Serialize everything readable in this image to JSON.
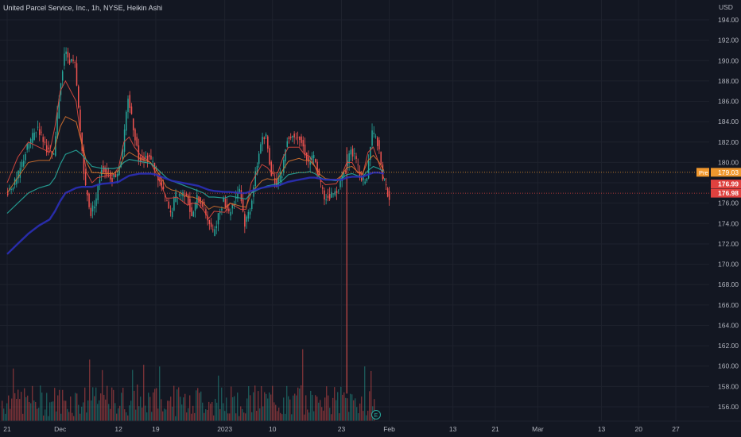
{
  "legend": {
    "symbol": "United Parcel Service, Inc., 1h, NYSE, Heikin Ashi"
  },
  "colors": {
    "background": "#131722",
    "grid": "#1e222d",
    "text": "#b2b5be",
    "up": "#26a69a",
    "down": "#ef5350",
    "ema_fast": "#e04a3f",
    "ema_mid": "#d8732f",
    "ema_slow": "#26a69a",
    "ema_long": "#2b2fb8",
    "pre_badge": "#f0982e",
    "price_badge": "#e0413f"
  },
  "chart_data": {
    "type": "candlestick",
    "currency": "USD",
    "ylim": [
      155,
      195
    ],
    "y_ticks": [
      "194.00",
      "192.00",
      "190.00",
      "188.00",
      "186.00",
      "184.00",
      "182.00",
      "180.00",
      "178.00",
      "176.00",
      "174.00",
      "172.00",
      "170.00",
      "168.00",
      "166.00",
      "164.00",
      "162.00",
      "160.00",
      "158.00",
      "156.00"
    ],
    "x_ticks": [
      {
        "label": "21",
        "x": "2022-11-21"
      },
      {
        "label": "Dec",
        "x": "2022-12-01"
      },
      {
        "label": "12",
        "x": "2022-12-12"
      },
      {
        "label": "19",
        "x": "2022-12-19"
      },
      {
        "label": "2023",
        "x": "2023-01-01"
      },
      {
        "label": "10",
        "x": "2023-01-10"
      },
      {
        "label": "23",
        "x": "2023-01-23"
      },
      {
        "label": "Feb",
        "x": "2023-02-01"
      },
      {
        "label": "13",
        "x": "2023-02-13"
      },
      {
        "label": "21",
        "x": "2023-02-21"
      },
      {
        "label": "Mar",
        "x": "2023-03-01"
      },
      {
        "label": "13",
        "x": "2023-03-13"
      },
      {
        "label": "20",
        "x": "2023-03-20"
      },
      {
        "label": "27",
        "x": "2023-03-27"
      }
    ],
    "x_range": [
      "2022-11-20",
      "2023-03-31"
    ],
    "close_series": [
      {
        "x": "2022-11-21",
        "y": 178.2
      },
      {
        "x": "2022-11-23",
        "y": 181.5
      },
      {
        "x": "2022-11-25",
        "y": 183.5
      },
      {
        "x": "2022-11-27",
        "y": 181.0
      },
      {
        "x": "2022-11-29",
        "y": 180.5
      },
      {
        "x": "2022-11-30",
        "y": 186.5
      },
      {
        "x": "2022-12-01",
        "y": 190.8
      },
      {
        "x": "2022-12-02",
        "y": 189.5
      },
      {
        "x": "2022-12-04",
        "y": 183.0
      },
      {
        "x": "2022-12-05",
        "y": 177.5
      },
      {
        "x": "2022-12-06",
        "y": 175.0
      },
      {
        "x": "2022-12-07",
        "y": 176.5
      },
      {
        "x": "2022-12-08",
        "y": 179.5
      },
      {
        "x": "2022-12-09",
        "y": 178.5
      },
      {
        "x": "2022-12-11",
        "y": 179.0
      },
      {
        "x": "2022-12-12",
        "y": 181.0
      },
      {
        "x": "2022-12-13",
        "y": 186.5
      },
      {
        "x": "2022-12-14",
        "y": 183.5
      },
      {
        "x": "2022-12-15",
        "y": 180.5
      },
      {
        "x": "2022-12-16",
        "y": 180.5
      },
      {
        "x": "2022-12-18",
        "y": 179.5
      },
      {
        "x": "2022-12-19",
        "y": 178.0
      },
      {
        "x": "2022-12-20",
        "y": 176.5
      },
      {
        "x": "2022-12-21",
        "y": 174.8
      },
      {
        "x": "2022-12-22",
        "y": 176.8
      },
      {
        "x": "2022-12-23",
        "y": 177.0
      },
      {
        "x": "2022-12-25",
        "y": 174.5
      },
      {
        "x": "2022-12-26",
        "y": 176.5
      },
      {
        "x": "2022-12-27",
        "y": 176.0
      },
      {
        "x": "2022-12-28",
        "y": 174.5
      },
      {
        "x": "2022-12-29",
        "y": 173.0
      },
      {
        "x": "2022-12-30",
        "y": 176.5
      },
      {
        "x": "2023-01-01",
        "y": 175.0
      },
      {
        "x": "2023-01-02",
        "y": 177.5
      },
      {
        "x": "2023-01-04",
        "y": 174.0
      },
      {
        "x": "2023-01-05",
        "y": 175.5
      },
      {
        "x": "2023-01-06",
        "y": 182.0
      },
      {
        "x": "2023-01-08",
        "y": 182.5
      },
      {
        "x": "2023-01-09",
        "y": 179.0
      },
      {
        "x": "2023-01-10",
        "y": 178.0
      },
      {
        "x": "2023-01-11",
        "y": 179.0
      },
      {
        "x": "2023-01-12",
        "y": 182.5
      },
      {
        "x": "2023-01-13",
        "y": 182.8
      },
      {
        "x": "2023-01-15",
        "y": 181.5
      },
      {
        "x": "2023-01-16",
        "y": 180.0
      },
      {
        "x": "2023-01-17",
        "y": 180.5
      },
      {
        "x": "2023-01-18",
        "y": 178.5
      },
      {
        "x": "2023-01-19",
        "y": 176.5
      },
      {
        "x": "2023-01-20",
        "y": 177.0
      },
      {
        "x": "2023-01-22",
        "y": 178.0
      },
      {
        "x": "2023-01-23",
        "y": 179.5
      },
      {
        "x": "2023-01-24",
        "y": 181.5
      },
      {
        "x": "2023-01-25",
        "y": 180.0
      },
      {
        "x": "2023-01-26",
        "y": 178.0
      },
      {
        "x": "2023-01-27",
        "y": 178.5
      },
      {
        "x": "2023-01-28",
        "y": 183.0
      },
      {
        "x": "2023-01-29",
        "y": 182.0
      },
      {
        "x": "2023-01-30",
        "y": 178.5
      },
      {
        "x": "2023-01-31",
        "y": 176.5
      }
    ],
    "moving_averages_y": {
      "ema_fast": [
        178,
        180.5,
        182,
        181.5,
        181,
        183.5,
        187,
        188,
        186,
        182,
        179,
        178,
        178.5,
        178.6,
        178.8,
        179.5,
        182,
        182.5,
        181.5,
        180.8,
        180,
        179,
        177.8,
        176.5,
        176.5,
        176.6,
        175.8,
        176,
        175.9,
        175.3,
        174.5,
        175.2,
        175.1,
        176,
        175.4,
        175.4,
        178,
        179.8,
        179.5,
        178.9,
        179,
        180.5,
        181.5,
        181.5,
        180.8,
        180.6,
        179.6,
        178.3,
        177.8,
        177.9,
        178.7,
        180,
        180,
        179,
        178.8,
        181,
        181.5,
        180,
        178.4
      ],
      "ema_mid": [
        177,
        178.5,
        180,
        180.2,
        180.2,
        181.5,
        183.5,
        184.5,
        184,
        182,
        180,
        179,
        179,
        178.9,
        178.9,
        179.2,
        180.5,
        181,
        180.7,
        180.4,
        180,
        179.4,
        178.5,
        177.6,
        177.3,
        177.2,
        176.6,
        176.6,
        176.4,
        176,
        175.4,
        175.7,
        175.5,
        176,
        175.7,
        175.6,
        177,
        178.2,
        178.4,
        178.3,
        178.4,
        179.3,
        180.1,
        180.4,
        180.2,
        180.2,
        179.6,
        178.8,
        178.4,
        178.3,
        178.7,
        179.5,
        179.6,
        179.1,
        178.9,
        180.2,
        180.7,
        180.1,
        179.2
      ],
      "ema_slow": [
        175,
        176,
        177,
        177.5,
        177.8,
        178.5,
        179.8,
        180.8,
        181.2,
        180.8,
        180.2,
        179.6,
        179.5,
        179.4,
        179.4,
        179.5,
        180,
        180.3,
        180.2,
        180.1,
        179.9,
        179.5,
        179,
        178.5,
        178.2,
        178,
        177.6,
        177.4,
        177.2,
        177,
        176.6,
        176.6,
        176.5,
        176.7,
        176.5,
        176.4,
        177,
        177.5,
        177.7,
        177.8,
        177.9,
        178.3,
        178.8,
        179,
        179,
        179.1,
        178.9,
        178.5,
        178.3,
        178.2,
        178.4,
        178.8,
        178.9,
        178.7,
        178.6,
        179.2,
        179.6,
        179.4,
        179.1
      ],
      "ema_long": [
        171,
        172,
        173,
        173.8,
        174.4,
        175.2,
        176.2,
        177,
        177.5,
        177.6,
        177.6,
        177.6,
        177.8,
        177.9,
        178,
        178.1,
        178.4,
        178.7,
        178.8,
        178.9,
        178.9,
        178.8,
        178.6,
        178.4,
        178.2,
        178.1,
        177.9,
        177.8,
        177.7,
        177.5,
        177.3,
        177.2,
        177.1,
        177.1,
        177,
        177,
        177.2,
        177.5,
        177.6,
        177.7,
        177.7,
        177.9,
        178.1,
        178.3,
        178.4,
        178.5,
        178.5,
        178.4,
        178.3,
        178.3,
        178.3,
        178.5,
        178.6,
        178.6,
        178.6,
        178.8,
        179,
        179,
        178.9
      ]
    },
    "wick_spike": {
      "x": "2023-01-24",
      "low": 157.3,
      "high": 181.5
    },
    "levels": {
      "pre_label": "Pre",
      "pre_price": "179.03",
      "pre_value": 179.03,
      "price_1": "176.99",
      "price_2": "176.98",
      "price_value": 176.98
    }
  }
}
